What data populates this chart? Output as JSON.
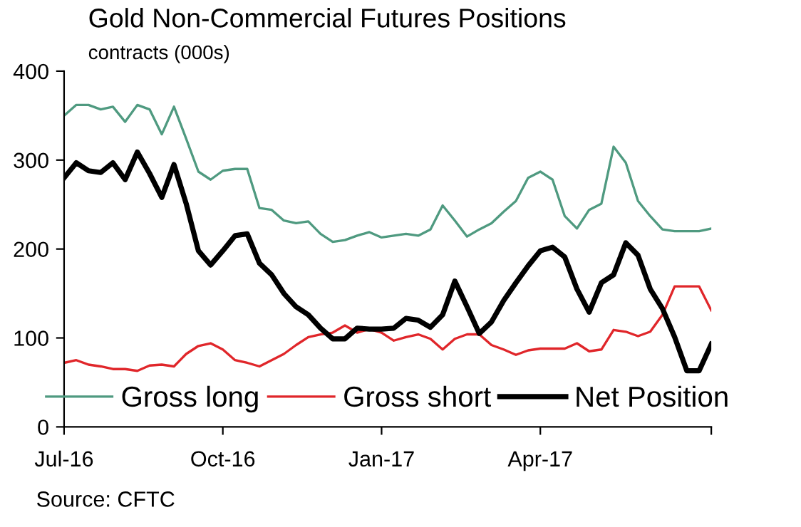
{
  "chart_data": {
    "type": "line",
    "title": "Gold Non-Commercial Futures Positions",
    "subtitle": "contracts (000s)",
    "annotations": [
      "Source: CFTC"
    ],
    "x": [
      "2016-07-05",
      "2016-07-12",
      "2016-07-19",
      "2016-07-26",
      "2016-08-02",
      "2016-08-09",
      "2016-08-16",
      "2016-08-23",
      "2016-08-30",
      "2016-09-06",
      "2016-09-13",
      "2016-09-20",
      "2016-09-27",
      "2016-10-04",
      "2016-10-11",
      "2016-10-18",
      "2016-10-25",
      "2016-11-01",
      "2016-11-08",
      "2016-11-15",
      "2016-11-22",
      "2016-11-29",
      "2016-12-06",
      "2016-12-13",
      "2016-12-20",
      "2016-12-27",
      "2017-01-03",
      "2017-01-10",
      "2017-01-17",
      "2017-01-24",
      "2017-01-31",
      "2017-02-07",
      "2017-02-14",
      "2017-02-21",
      "2017-02-28",
      "2017-03-07",
      "2017-03-14",
      "2017-03-21",
      "2017-03-28",
      "2017-04-04",
      "2017-04-11",
      "2017-04-18",
      "2017-04-25",
      "2017-05-02",
      "2017-05-09",
      "2017-05-16",
      "2017-05-23",
      "2017-05-30",
      "2017-06-06",
      "2017-06-13",
      "2017-06-20",
      "2017-06-27",
      "2017-07-04",
      "2017-07-11"
    ],
    "series": [
      {
        "name": "Gross long",
        "color": "#4f9a80",
        "values": [
          350,
          362,
          362,
          357,
          360,
          343,
          362,
          357,
          329,
          360,
          324,
          287,
          278,
          288,
          290,
          290,
          246,
          244,
          232,
          229,
          231,
          217,
          208,
          210,
          215,
          219,
          213,
          215,
          217,
          215,
          222,
          249,
          232,
          214,
          222,
          229,
          242,
          254,
          280,
          287,
          278,
          237,
          223,
          244,
          251,
          315,
          297,
          254,
          237,
          222,
          220,
          220,
          220,
          223
        ]
      },
      {
        "name": "Gross short",
        "color": "#e0262a",
        "values": [
          72,
          75,
          70,
          68,
          65,
          65,
          63,
          69,
          70,
          68,
          82,
          91,
          94,
          87,
          75,
          72,
          68,
          75,
          82,
          92,
          101,
          104,
          106,
          114,
          106,
          110,
          106,
          97,
          101,
          104,
          99,
          87,
          99,
          104,
          104,
          92,
          87,
          81,
          86,
          88,
          88,
          88,
          94,
          85,
          87,
          109,
          107,
          102,
          107,
          126,
          158,
          158,
          158,
          131
        ]
      },
      {
        "name": "Net Position",
        "color": "#000000",
        "values": [
          280,
          297,
          288,
          286,
          297,
          278,
          309,
          285,
          258,
          295,
          251,
          198,
          182,
          198,
          215,
          217,
          184,
          171,
          150,
          135,
          126,
          111,
          99,
          99,
          111,
          110,
          110,
          111,
          122,
          120,
          112,
          126,
          164,
          135,
          105,
          118,
          142,
          162,
          181,
          198,
          202,
          191,
          155,
          129,
          162,
          171,
          207,
          193,
          155,
          133,
          101,
          63,
          63,
          93
        ]
      }
    ],
    "xlim": [
      "2016-07-05",
      "2017-07-11"
    ],
    "xticks": [
      {
        "value": "2016-07-05",
        "label": "Jul-16"
      },
      {
        "value": "2016-10-04",
        "label": "Oct-16"
      },
      {
        "value": "2017-01-03",
        "label": "Jan-17"
      },
      {
        "value": "2017-04-04",
        "label": "Apr-17"
      },
      {
        "value": "2017-07-11",
        "label": null
      }
    ],
    "ylim": [
      0,
      400
    ],
    "yticks": [
      0,
      100,
      200,
      300,
      400
    ],
    "grid": false,
    "legend": "bottom",
    "marker": "none",
    "line_style": "solid"
  }
}
